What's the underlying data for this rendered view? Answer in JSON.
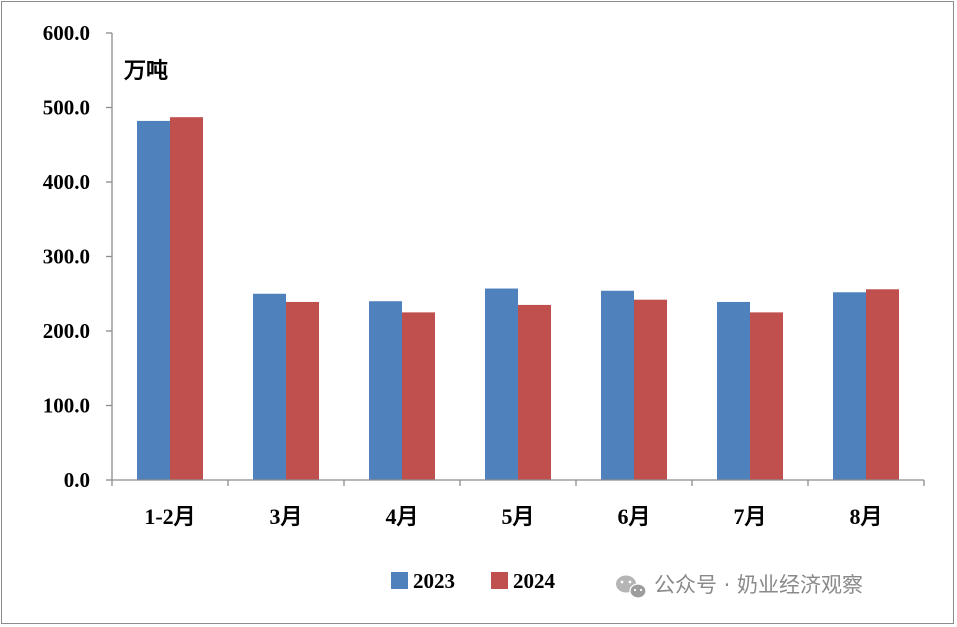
{
  "chart_data": {
    "type": "bar",
    "unit_label": "万吨",
    "categories": [
      "1-2月",
      "3月",
      "4月",
      "5月",
      "6月",
      "7月",
      "8月"
    ],
    "series": [
      {
        "name": "2023",
        "color": "#4f81bd",
        "values": [
          482,
          250,
          240,
          257,
          254,
          239,
          252
        ]
      },
      {
        "name": "2024",
        "color": "#c0504d",
        "values": [
          487,
          239,
          225,
          235,
          242,
          225,
          256
        ]
      }
    ],
    "ylim": [
      0,
      600
    ],
    "yticks": [
      "0.0",
      "100.0",
      "200.0",
      "300.0",
      "400.0",
      "500.0",
      "600.0"
    ],
    "grid": false,
    "legend_position": "bottom"
  },
  "watermark": {
    "text": "公众号 · 奶业经济观察",
    "icon": "wechat-icon"
  }
}
